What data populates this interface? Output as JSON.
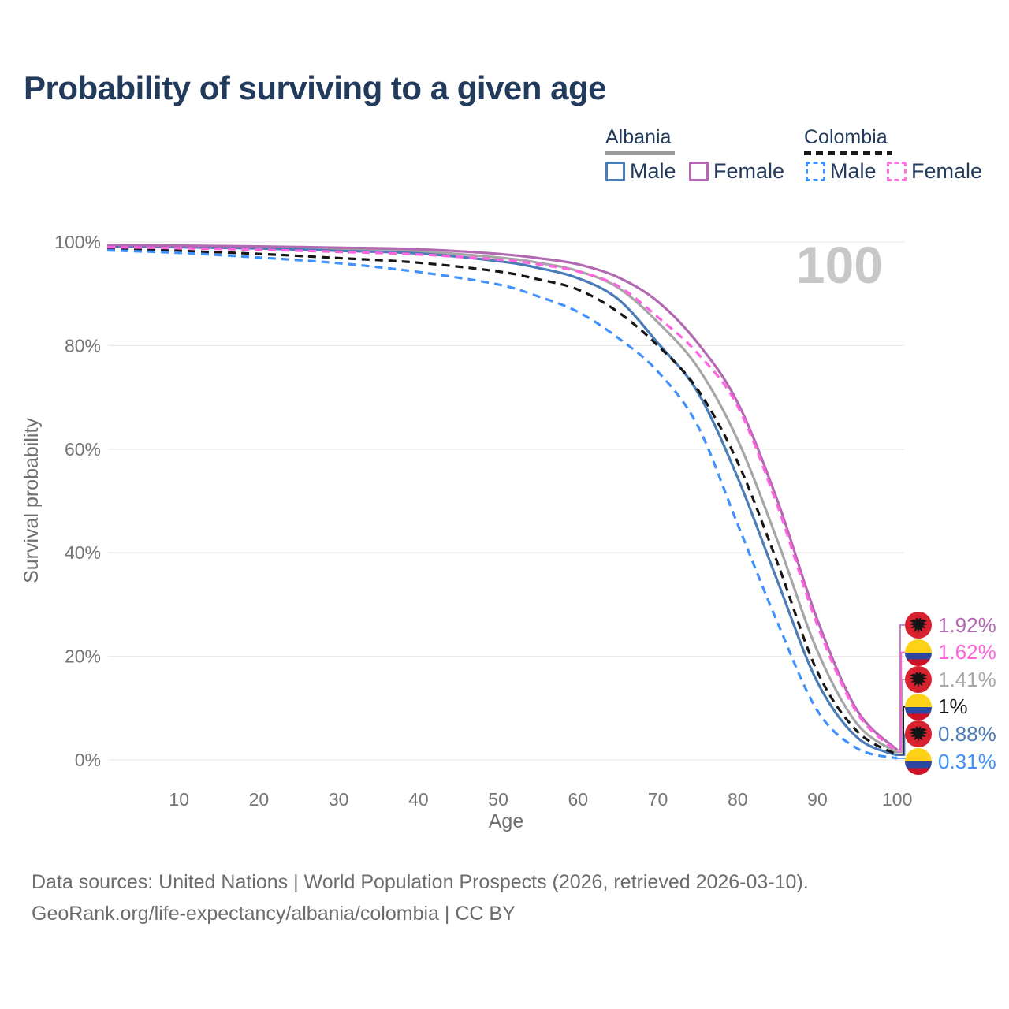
{
  "page": {
    "title": "Probability of surviving to a given age",
    "big_age_label": "100",
    "footer_line1": "Data sources: United Nations | World Population Prospects (2026, retrieved 2026-03-10).",
    "footer_line2": "GeoRank.org/life-expectancy/albania/colombia | CC BY"
  },
  "legend": {
    "groups": [
      {
        "label": "Albania",
        "underline_color": "#9a9a9a",
        "underline_dashed": false,
        "items": [
          {
            "label": "Male",
            "color": "#4a7cb8",
            "dashed": false
          },
          {
            "label": "Female",
            "color": "#b269b2",
            "dashed": false
          }
        ]
      },
      {
        "label": "Colombia",
        "underline_color": "#1a1a1a",
        "underline_dashed": true,
        "items": [
          {
            "label": "Male",
            "color": "#4191fc",
            "dashed": true
          },
          {
            "label": "Female",
            "color": "#ff74e5",
            "dashed": true
          }
        ]
      }
    ]
  },
  "chart_data": {
    "type": "line",
    "title": "Probability of surviving to a given age",
    "xlabel": "Age",
    "ylabel": "Survival probability",
    "xlim": [
      0,
      101
    ],
    "ylim": [
      0,
      100
    ],
    "grid": true,
    "legend_position": "top-right",
    "age_ticker": "100",
    "xticks": [
      10,
      20,
      30,
      40,
      50,
      60,
      70,
      80,
      90,
      100
    ],
    "yticks": [
      {
        "value": 0,
        "label": "0%"
      },
      {
        "value": 20,
        "label": "20%"
      },
      {
        "value": 40,
        "label": "40%"
      },
      {
        "value": 60,
        "label": "60%"
      },
      {
        "value": 80,
        "label": "80%"
      },
      {
        "value": 100,
        "label": "100%"
      }
    ],
    "x_ages": [
      1,
      10,
      20,
      30,
      40,
      50,
      55,
      60,
      65,
      70,
      75,
      80,
      85,
      90,
      95,
      100
    ],
    "series": [
      {
        "name": "Albania Female",
        "country": "Albania",
        "sex": "Female",
        "style": "solid",
        "color": "#b269b2",
        "end_label": "1.92%",
        "values": [
          99.4,
          99.3,
          99.15,
          98.9,
          98.6,
          97.7,
          96.9,
          95.7,
          93.2,
          88.5,
          80.5,
          69.0,
          50.0,
          27.0,
          9.5,
          1.92
        ]
      },
      {
        "name": "Colombia Female",
        "country": "Colombia",
        "sex": "Female",
        "style": "dashed",
        "color": "#ff63df",
        "end_label": "1.62%",
        "values": [
          99.0,
          98.8,
          98.5,
          98.1,
          97.6,
          96.6,
          95.7,
          94.3,
          91.5,
          85.5,
          78.5,
          68.3,
          49.0,
          26.0,
          9.0,
          1.62
        ]
      },
      {
        "name": "Albania Both sexes",
        "country": "Albania",
        "sex": "Both",
        "style": "solid",
        "color": "#a6a6a6",
        "end_label": "1.41%",
        "values": [
          99.3,
          99.15,
          98.95,
          98.6,
          98.2,
          97.0,
          96.0,
          94.4,
          91.2,
          84.5,
          75.8,
          61.8,
          42.3,
          21.0,
          6.9,
          1.41
        ]
      },
      {
        "name": "Colombia Both sexes",
        "country": "Colombia",
        "sex": "Both",
        "style": "dashed",
        "color": "#161616",
        "end_label": "1%",
        "values": [
          98.7,
          98.3,
          97.7,
          96.9,
          96.0,
          94.3,
          92.8,
          90.8,
          86.5,
          80.0,
          71.5,
          57.5,
          38.0,
          17.0,
          5.5,
          1.0
        ]
      },
      {
        "name": "Albania Male",
        "country": "Albania",
        "sex": "Male",
        "style": "solid",
        "color": "#4a7cb8",
        "end_label": "0.88%",
        "values": [
          99.2,
          99.0,
          98.75,
          98.3,
          97.8,
          96.3,
          95.0,
          93.0,
          89.0,
          80.5,
          71.0,
          54.5,
          34.5,
          15.0,
          4.3,
          0.88
        ]
      },
      {
        "name": "Colombia Male",
        "country": "Colombia",
        "sex": "Male",
        "style": "dashed",
        "color": "#4191fc",
        "end_label": "0.31%",
        "values": [
          98.4,
          97.9,
          97.0,
          95.9,
          94.2,
          91.8,
          89.5,
          86.5,
          81.5,
          75.0,
          64.5,
          45.5,
          26.5,
          9.5,
          2.2,
          0.31
        ]
      }
    ],
    "flag_colors": {
      "albania_red": "#d8212f",
      "eagle_black": "#141414",
      "colombia_yellow": "#fcd116",
      "colombia_blue": "#2c479d",
      "colombia_red": "#cf1127"
    }
  }
}
